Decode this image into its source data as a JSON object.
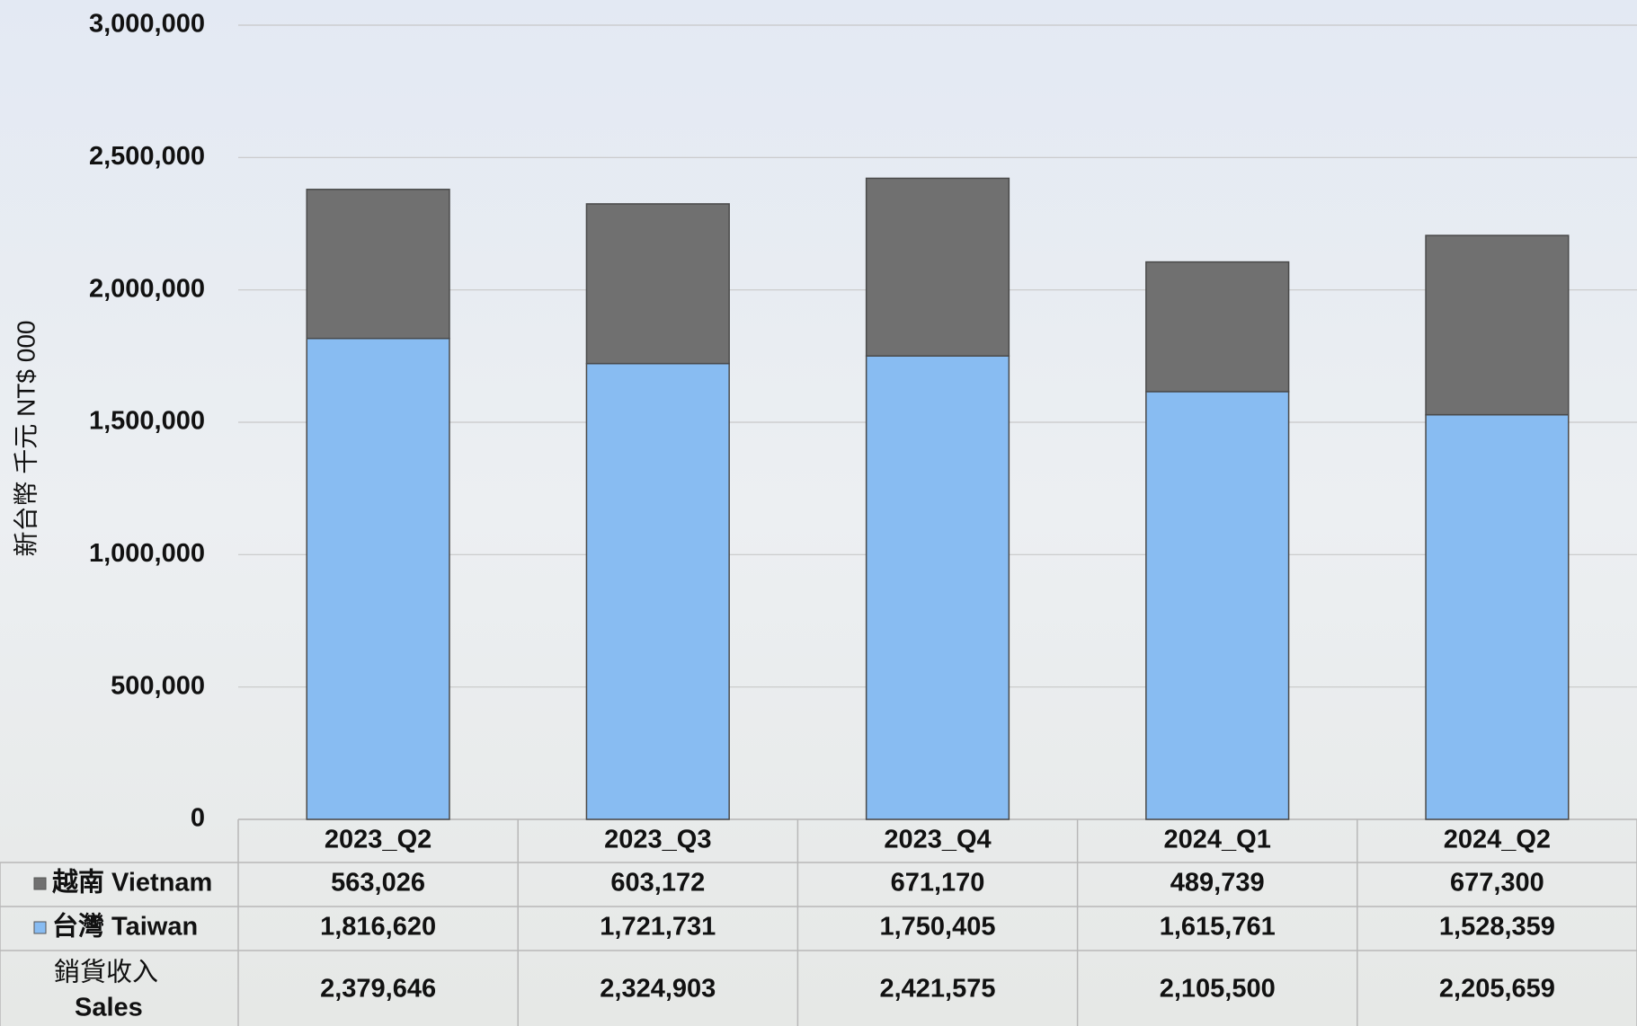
{
  "chart_data": {
    "type": "stacked_bar",
    "y_label": "新台幣 千元 NT$ 000",
    "categories": [
      "2023_Q2",
      "2023_Q3",
      "2023_Q4",
      "2024_Q1",
      "2024_Q2"
    ],
    "series": [
      {
        "name": "越南 Vietnam",
        "color": "#707070",
        "values": [
          563026,
          603172,
          671170,
          489739,
          677300
        ],
        "value_labels": [
          "563,026",
          "603,172",
          "671,170",
          "489,739",
          "677,300"
        ]
      },
      {
        "name": "台灣 Taiwan",
        "color": "#88bcf2",
        "values": [
          1816620,
          1721731,
          1750405,
          1615761,
          1528359
        ],
        "value_labels": [
          "1,816,620",
          "1,721,731",
          "1,750,405",
          "1,615,761",
          "1,528,359"
        ]
      }
    ],
    "totals": {
      "name": [
        "銷貨收入",
        "Sales"
      ],
      "values": [
        2379646,
        2324903,
        2421575,
        2105500,
        2205659
      ],
      "value_labels": [
        "2,379,646",
        "2,324,903",
        "2,421,575",
        "2,105,500",
        "2,205,659"
      ]
    },
    "ylim": [
      0,
      3000000
    ],
    "yticks": [
      0,
      {
        "value": 500000,
        "label": "500,000"
      },
      {
        "value": 1000000,
        "label": "1,000,000"
      },
      {
        "value": 1500000,
        "label": "1,500,000"
      },
      {
        "value": 2000000,
        "label": "2,000,000"
      },
      {
        "value": 2500000,
        "label": "2,500,000"
      },
      {
        "value": 3000000,
        "label": "3,000,000"
      }
    ],
    "grid": true
  }
}
